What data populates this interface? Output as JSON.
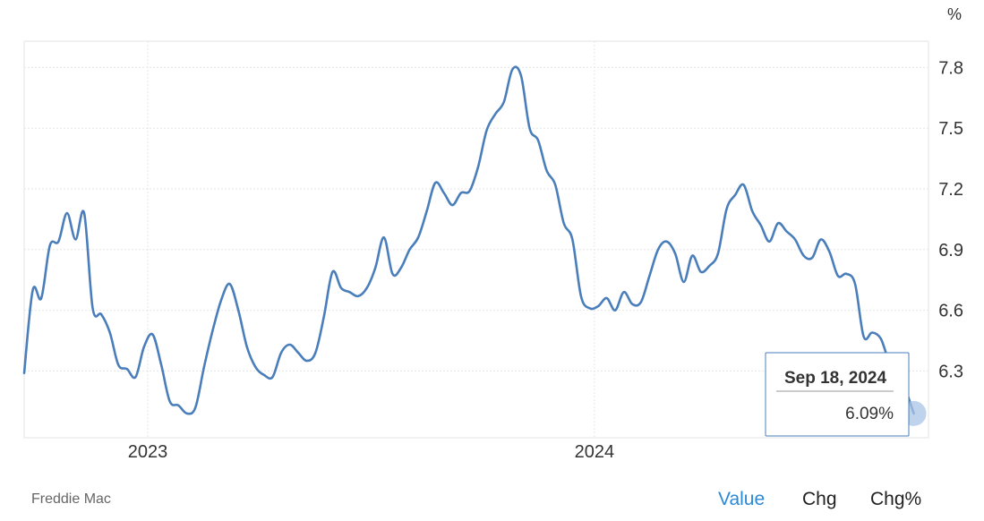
{
  "chart_data": {
    "type": "line",
    "unit_label": "%",
    "y_ticks": [
      6.3,
      6.6,
      6.9,
      7.2,
      7.5,
      7.8
    ],
    "x_ticks": [
      {
        "date": "2023-01-01",
        "label": "2023"
      },
      {
        "date": "2024-01-01",
        "label": "2024"
      }
    ],
    "xlim": [
      "2022-09-22",
      "2024-09-30"
    ],
    "ylim": [
      5.97,
      7.93
    ],
    "grid": true,
    "series": [
      {
        "color": "#4a7ebb",
        "points": [
          [
            "2022-09-22",
            6.29
          ],
          [
            "2022-09-29",
            6.7
          ],
          [
            "2022-10-06",
            6.66
          ],
          [
            "2022-10-13",
            6.92
          ],
          [
            "2022-10-20",
            6.94
          ],
          [
            "2022-10-27",
            7.08
          ],
          [
            "2022-11-03",
            6.95
          ],
          [
            "2022-11-10",
            7.08
          ],
          [
            "2022-11-17",
            6.61
          ],
          [
            "2022-11-24",
            6.58
          ],
          [
            "2022-12-01",
            6.49
          ],
          [
            "2022-12-08",
            6.33
          ],
          [
            "2022-12-15",
            6.31
          ],
          [
            "2022-12-22",
            6.27
          ],
          [
            "2022-12-29",
            6.42
          ],
          [
            "2023-01-05",
            6.48
          ],
          [
            "2023-01-12",
            6.33
          ],
          [
            "2023-01-19",
            6.15
          ],
          [
            "2023-01-26",
            6.13
          ],
          [
            "2023-02-02",
            6.09
          ],
          [
            "2023-02-09",
            6.12
          ],
          [
            "2023-02-16",
            6.32
          ],
          [
            "2023-02-23",
            6.5
          ],
          [
            "2023-03-02",
            6.65
          ],
          [
            "2023-03-09",
            6.73
          ],
          [
            "2023-03-16",
            6.6
          ],
          [
            "2023-03-23",
            6.42
          ],
          [
            "2023-03-30",
            6.32
          ],
          [
            "2023-04-06",
            6.28
          ],
          [
            "2023-04-13",
            6.27
          ],
          [
            "2023-04-20",
            6.39
          ],
          [
            "2023-04-27",
            6.43
          ],
          [
            "2023-05-04",
            6.39
          ],
          [
            "2023-05-11",
            6.35
          ],
          [
            "2023-05-18",
            6.39
          ],
          [
            "2023-05-25",
            6.57
          ],
          [
            "2023-06-01",
            6.79
          ],
          [
            "2023-06-08",
            6.71
          ],
          [
            "2023-06-15",
            6.69
          ],
          [
            "2023-06-22",
            6.67
          ],
          [
            "2023-06-29",
            6.71
          ],
          [
            "2023-07-06",
            6.81
          ],
          [
            "2023-07-13",
            6.96
          ],
          [
            "2023-07-20",
            6.78
          ],
          [
            "2023-07-27",
            6.81
          ],
          [
            "2023-08-03",
            6.9
          ],
          [
            "2023-08-10",
            6.96
          ],
          [
            "2023-08-17",
            7.09
          ],
          [
            "2023-08-24",
            7.23
          ],
          [
            "2023-08-31",
            7.18
          ],
          [
            "2023-09-07",
            7.12
          ],
          [
            "2023-09-14",
            7.18
          ],
          [
            "2023-09-21",
            7.19
          ],
          [
            "2023-09-28",
            7.31
          ],
          [
            "2023-10-05",
            7.49
          ],
          [
            "2023-10-12",
            7.57
          ],
          [
            "2023-10-19",
            7.63
          ],
          [
            "2023-10-26",
            7.79
          ],
          [
            "2023-11-02",
            7.76
          ],
          [
            "2023-11-09",
            7.5
          ],
          [
            "2023-11-16",
            7.44
          ],
          [
            "2023-11-23",
            7.29
          ],
          [
            "2023-11-30",
            7.22
          ],
          [
            "2023-12-07",
            7.03
          ],
          [
            "2023-12-14",
            6.95
          ],
          [
            "2023-12-21",
            6.67
          ],
          [
            "2023-12-28",
            6.61
          ],
          [
            "2024-01-04",
            6.62
          ],
          [
            "2024-01-11",
            6.66
          ],
          [
            "2024-01-18",
            6.6
          ],
          [
            "2024-01-25",
            6.69
          ],
          [
            "2024-02-01",
            6.63
          ],
          [
            "2024-02-08",
            6.64
          ],
          [
            "2024-02-15",
            6.77
          ],
          [
            "2024-02-22",
            6.9
          ],
          [
            "2024-02-29",
            6.94
          ],
          [
            "2024-03-07",
            6.88
          ],
          [
            "2024-03-14",
            6.74
          ],
          [
            "2024-03-21",
            6.87
          ],
          [
            "2024-03-28",
            6.79
          ],
          [
            "2024-04-04",
            6.82
          ],
          [
            "2024-04-11",
            6.88
          ],
          [
            "2024-04-18",
            7.1
          ],
          [
            "2024-04-25",
            7.17
          ],
          [
            "2024-05-02",
            7.22
          ],
          [
            "2024-05-09",
            7.09
          ],
          [
            "2024-05-16",
            7.02
          ],
          [
            "2024-05-23",
            6.94
          ],
          [
            "2024-05-30",
            7.03
          ],
          [
            "2024-06-06",
            6.99
          ],
          [
            "2024-06-13",
            6.95
          ],
          [
            "2024-06-20",
            6.87
          ],
          [
            "2024-06-27",
            6.86
          ],
          [
            "2024-07-04",
            6.95
          ],
          [
            "2024-07-11",
            6.89
          ],
          [
            "2024-07-18",
            6.77
          ],
          [
            "2024-07-25",
            6.78
          ],
          [
            "2024-08-01",
            6.73
          ],
          [
            "2024-08-08",
            6.47
          ],
          [
            "2024-08-15",
            6.49
          ],
          [
            "2024-08-22",
            6.46
          ],
          [
            "2024-08-29",
            6.35
          ],
          [
            "2024-09-05",
            6.35
          ],
          [
            "2024-09-12",
            6.2
          ],
          [
            "2024-09-18",
            6.09
          ]
        ]
      }
    ],
    "tooltip": {
      "date": "Sep 18, 2024",
      "value": "6.09%"
    },
    "source": "Freddie Mac"
  },
  "tabs": [
    {
      "label": "Value",
      "active": true
    },
    {
      "label": "Chg",
      "active": false
    },
    {
      "label": "Chg%",
      "active": false
    }
  ]
}
